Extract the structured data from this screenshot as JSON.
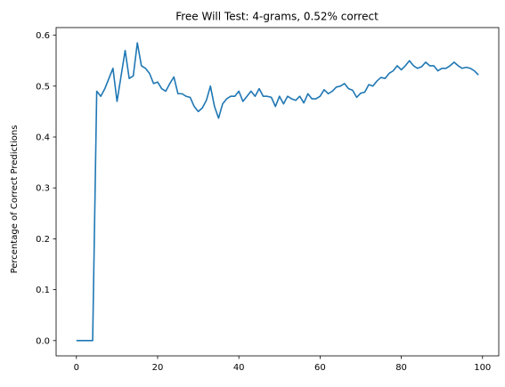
{
  "chart_data": {
    "type": "line",
    "title": "Free Will Test: 4-grams, 0.52% correct",
    "xlabel": "",
    "ylabel": "Percentage of Correct Predictions",
    "xlim": [
      -5,
      104
    ],
    "ylim": [
      -0.03,
      0.615
    ],
    "x_ticks": [
      0,
      20,
      40,
      60,
      80,
      100
    ],
    "y_ticks": [
      0.0,
      0.1,
      0.2,
      0.3,
      0.4,
      0.5,
      0.6
    ],
    "x_tick_labels": [
      "0",
      "20",
      "40",
      "60",
      "80",
      "100"
    ],
    "y_tick_labels": [
      "0.0",
      "0.1",
      "0.2",
      "0.3",
      "0.4",
      "0.5",
      "0.6"
    ],
    "grid": false,
    "series": [
      {
        "color": "#1f77b4",
        "x": [
          0,
          1,
          2,
          3,
          4,
          5,
          6,
          7,
          8,
          9,
          10,
          11,
          12,
          13,
          14,
          15,
          16,
          17,
          18,
          19,
          20,
          21,
          22,
          23,
          24,
          25,
          26,
          27,
          28,
          29,
          30,
          31,
          32,
          33,
          34,
          35,
          36,
          37,
          38,
          39,
          40,
          41,
          42,
          43,
          44,
          45,
          46,
          47,
          48,
          49,
          50,
          51,
          52,
          53,
          54,
          55,
          56,
          57,
          58,
          59,
          60,
          61,
          62,
          63,
          64,
          65,
          66,
          67,
          68,
          69,
          70,
          71,
          72,
          73,
          74,
          75,
          76,
          77,
          78,
          79,
          80,
          81,
          82,
          83,
          84,
          85,
          86,
          87,
          88,
          89,
          90,
          91,
          92,
          93,
          94,
          95,
          96,
          97,
          98,
          99
        ],
        "values": [
          0.0,
          0.0,
          0.0,
          0.0,
          0.0,
          0.49,
          0.48,
          0.495,
          0.515,
          0.535,
          0.47,
          0.52,
          0.57,
          0.515,
          0.52,
          0.585,
          0.54,
          0.535,
          0.525,
          0.505,
          0.508,
          0.495,
          0.49,
          0.505,
          0.518,
          0.485,
          0.485,
          0.48,
          0.478,
          0.46,
          0.45,
          0.457,
          0.472,
          0.5,
          0.46,
          0.437,
          0.465,
          0.475,
          0.48,
          0.48,
          0.49,
          0.47,
          0.48,
          0.49,
          0.48,
          0.495,
          0.48,
          0.48,
          0.478,
          0.46,
          0.48,
          0.465,
          0.48,
          0.475,
          0.472,
          0.48,
          0.467,
          0.485,
          0.475,
          0.475,
          0.48,
          0.493,
          0.485,
          0.49,
          0.498,
          0.5,
          0.505,
          0.495,
          0.492,
          0.478,
          0.486,
          0.488,
          0.503,
          0.5,
          0.51,
          0.517,
          0.515,
          0.525,
          0.53,
          0.54,
          0.532,
          0.54,
          0.55,
          0.54,
          0.535,
          0.538,
          0.547,
          0.54,
          0.54,
          0.53,
          0.535,
          0.535,
          0.54,
          0.547,
          0.54,
          0.535,
          0.537,
          0.535,
          0.53,
          0.522
        ]
      }
    ]
  }
}
